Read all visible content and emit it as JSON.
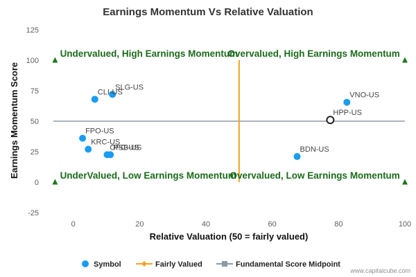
{
  "chart_data": {
    "type": "scatter",
    "title": "Earnings Momentum Vs Relative Valuation",
    "xlabel": "Relative Valuation (50 = fairly valued)",
    "ylabel": "Earnings Momentum Score",
    "xlim": [
      -6,
      100
    ],
    "ylim": [
      -25,
      125
    ],
    "xticks": [
      0,
      20,
      40,
      60,
      80,
      100
    ],
    "yticks": [
      -25,
      0,
      25,
      50,
      75,
      100,
      125
    ],
    "points": [
      {
        "label": "CLI-US",
        "x": 6.5,
        "y": 68
      },
      {
        "label": "SLG-US",
        "x": 11.8,
        "y": 72
      },
      {
        "label": "FPO-US",
        "x": 2.8,
        "y": 36
      },
      {
        "label": "KRC-US",
        "x": 4.5,
        "y": 27
      },
      {
        "label": "OFC-US",
        "x": 10.2,
        "y": 22.5
      },
      {
        "label": "PSB-US",
        "x": 11.2,
        "y": 22.5
      },
      {
        "label": "BDN-US",
        "x": 67.5,
        "y": 21
      },
      {
        "label": "VNO-US",
        "x": 82.5,
        "y": 65.5
      }
    ],
    "highlight": {
      "label": "HPP-US",
      "x": 77.5,
      "y": 51
    },
    "fairly_valued_x": 50,
    "midpoint_y": 50,
    "quadrant_labels": [
      {
        "text": "Undervalued, High Earnings Momentum",
        "x": -4,
        "y": 105,
        "anchor": "start"
      },
      {
        "text": "Overvalued, High Earnings Momentum",
        "x": 98.5,
        "y": 105,
        "anchor": "end"
      },
      {
        "text": "UnderValued, Low Earnings Momentum",
        "x": -4,
        "y": 5,
        "anchor": "start"
      },
      {
        "text": "Overvalued, Low Earnings Momentum",
        "x": 98.5,
        "y": 5,
        "anchor": "end"
      }
    ],
    "corner_markers": [
      {
        "x": -5.5,
        "y": 100
      },
      {
        "x": 100,
        "y": 100
      },
      {
        "x": -5.5,
        "y": 0
      },
      {
        "x": 100,
        "y": 0
      }
    ],
    "legend": [
      {
        "label": "Symbol",
        "kind": "dot",
        "color": "#1a9cf0"
      },
      {
        "label": "Fairly Valued",
        "kind": "diamond-line",
        "color": "#f7a21b"
      },
      {
        "label": "Fundamental Score Midpoint",
        "kind": "square-line",
        "color": "#8a9aa6"
      }
    ],
    "credit": "www.capitalcube.com"
  },
  "colors": {
    "point": "#1a9cf0",
    "fairly_valued": "#f7a21b",
    "midpoint": "#8a9aa6",
    "quadrant_text": "#1a6b1a",
    "marker": "#1a7a1a"
  }
}
